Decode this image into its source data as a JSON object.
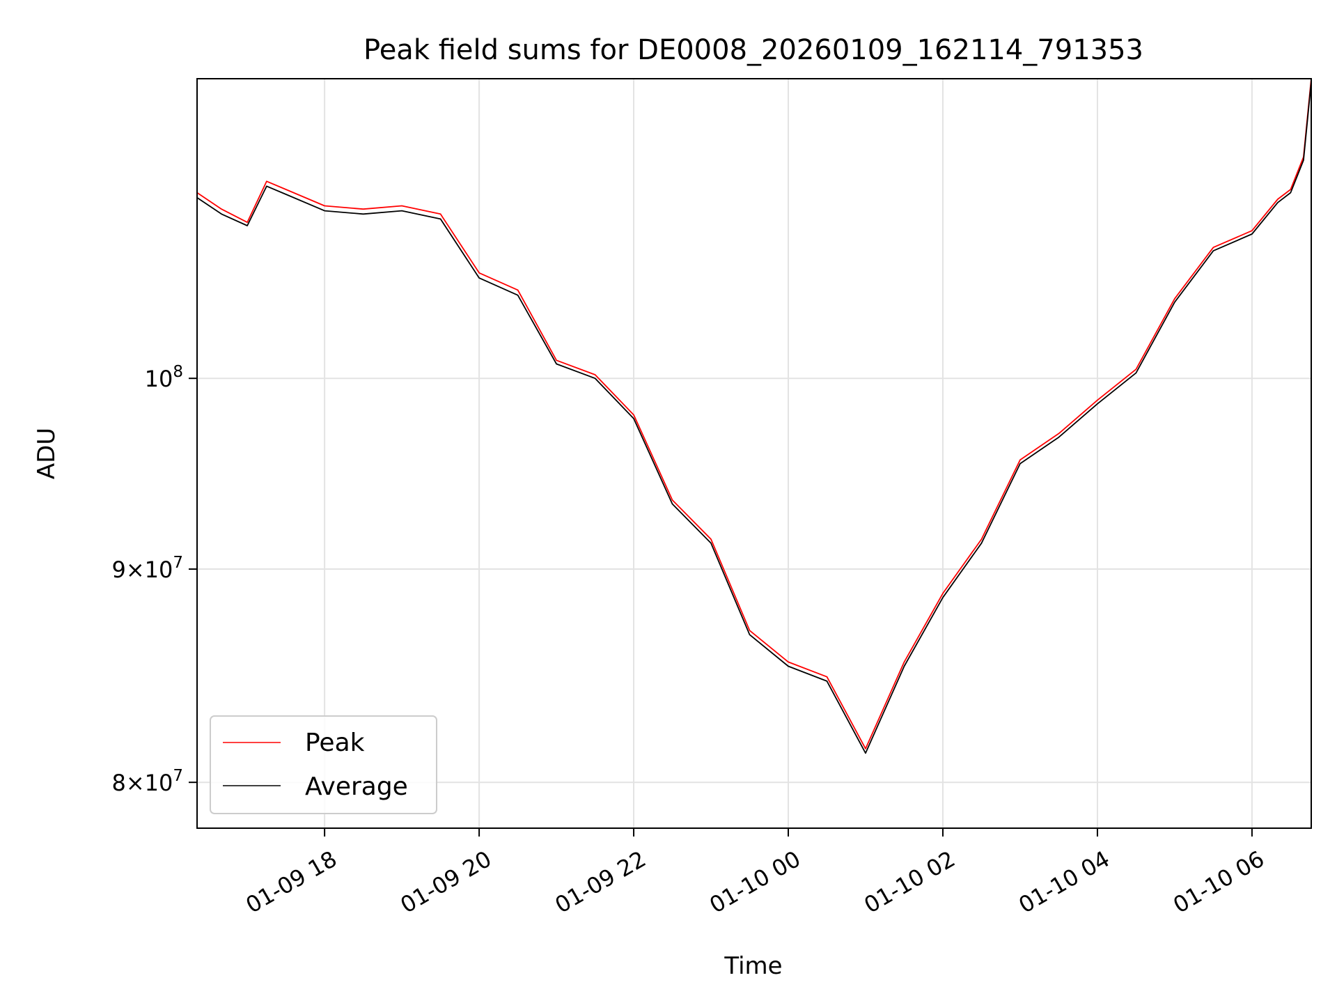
{
  "chart_data": {
    "type": "line",
    "title": "Peak field sums for DE0008_20260109_162114_791353",
    "xlabel": "Time",
    "ylabel": "ADU",
    "x_scale": "time",
    "y_scale": "log",
    "xlim": [
      "2026-01-09 16:21",
      "2026-01-10 06:46"
    ],
    "ylim": [
      78000000,
      118000000
    ],
    "grid": true,
    "legend_position": "lower-left",
    "x_ticks": [
      {
        "label": "01-09 18",
        "value": "2026-01-09 18:00"
      },
      {
        "label": "01-09 20",
        "value": "2026-01-09 20:00"
      },
      {
        "label": "01-09 22",
        "value": "2026-01-09 22:00"
      },
      {
        "label": "01-10 00",
        "value": "2026-01-10 00:00"
      },
      {
        "label": "01-10 02",
        "value": "2026-01-10 02:00"
      },
      {
        "label": "01-10 04",
        "value": "2026-01-10 04:00"
      },
      {
        "label": "01-10 06",
        "value": "2026-01-10 06:00"
      }
    ],
    "y_ticks": [
      {
        "value": 80000000,
        "mantissa": "8",
        "base": "10",
        "exp": "7"
      },
      {
        "value": 90000000,
        "mantissa": "9",
        "base": "10",
        "exp": "7"
      },
      {
        "value": 100000000,
        "mantissa": "",
        "base": "10",
        "exp": "8"
      }
    ],
    "series": [
      {
        "name": "Peak",
        "color": "#ff0000",
        "x": [
          "2026-01-09 16:21",
          "2026-01-09 16:40",
          "2026-01-09 17:00",
          "2026-01-09 17:15",
          "2026-01-09 17:30",
          "2026-01-09 18:00",
          "2026-01-09 18:30",
          "2026-01-09 19:00",
          "2026-01-09 19:30",
          "2026-01-09 20:00",
          "2026-01-09 20:30",
          "2026-01-09 21:00",
          "2026-01-09 21:30",
          "2026-01-09 22:00",
          "2026-01-09 22:30",
          "2026-01-09 23:00",
          "2026-01-09 23:30",
          "2026-01-10 00:00",
          "2026-01-10 00:30",
          "2026-01-10 01:00",
          "2026-01-10 01:30",
          "2026-01-10 02:00",
          "2026-01-10 02:30",
          "2026-01-10 03:00",
          "2026-01-10 03:30",
          "2026-01-10 04:00",
          "2026-01-10 04:30",
          "2026-01-10 05:00",
          "2026-01-10 05:30",
          "2026-01-10 06:00",
          "2026-01-10 06:20",
          "2026-01-10 06:30",
          "2026-01-10 06:40",
          "2026-01-10 06:46"
        ],
        "y": [
          110800000,
          109800000,
          109000000,
          111500000,
          111000000,
          110000000,
          109800000,
          110000000,
          109500000,
          106000000,
          105000000,
          101000000,
          100200000,
          98000000,
          93500000,
          91500000,
          87000000,
          85500000,
          84800000,
          81500000,
          85500000,
          88800000,
          91500000,
          95600000,
          97000000,
          98800000,
          100500000,
          104500000,
          107500000,
          108500000,
          110400000,
          111000000,
          113000000,
          118000000
        ]
      },
      {
        "name": "Average",
        "color": "#000000",
        "x": [
          "2026-01-09 16:21",
          "2026-01-09 16:40",
          "2026-01-09 17:00",
          "2026-01-09 17:15",
          "2026-01-09 17:30",
          "2026-01-09 18:00",
          "2026-01-09 18:30",
          "2026-01-09 19:00",
          "2026-01-09 19:30",
          "2026-01-09 20:00",
          "2026-01-09 20:30",
          "2026-01-09 21:00",
          "2026-01-09 21:30",
          "2026-01-09 22:00",
          "2026-01-09 22:30",
          "2026-01-09 23:00",
          "2026-01-09 23:30",
          "2026-01-10 00:00",
          "2026-01-10 00:30",
          "2026-01-10 01:00",
          "2026-01-10 01:30",
          "2026-01-10 02:00",
          "2026-01-10 02:30",
          "2026-01-10 03:00",
          "2026-01-10 03:30",
          "2026-01-10 04:00",
          "2026-01-10 04:30",
          "2026-01-10 05:00",
          "2026-01-10 05:30",
          "2026-01-10 06:00",
          "2026-01-10 06:20",
          "2026-01-10 06:30",
          "2026-01-10 06:40",
          "2026-01-10 06:46"
        ],
        "y": [
          110500000,
          109500000,
          108800000,
          111200000,
          110700000,
          109700000,
          109500000,
          109700000,
          109200000,
          105700000,
          104700000,
          100800000,
          100000000,
          97800000,
          93300000,
          91300000,
          86800000,
          85300000,
          84600000,
          81300000,
          85300000,
          88600000,
          91300000,
          95400000,
          96800000,
          98600000,
          100300000,
          104300000,
          107300000,
          108300000,
          110200000,
          110800000,
          112800000,
          117800000
        ]
      }
    ]
  }
}
